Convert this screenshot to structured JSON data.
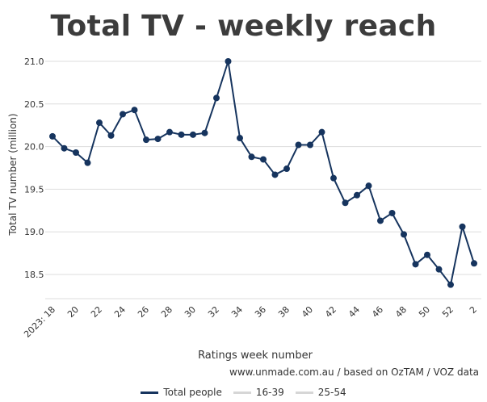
{
  "title": "Total TV - weekly reach",
  "source": "www.unmade.com.au / based on OzTAM / VOZ data",
  "colors": {
    "series_main": "#16345e",
    "series_inactive": "#d6d6d6",
    "grid": "#dddddd",
    "text": "#333333"
  },
  "chart_data": {
    "type": "line",
    "xlabel": "Ratings week number",
    "ylabel": "Total TV number (million)",
    "ylim": [
      18.2,
      21.0
    ],
    "yticks": [
      "21.0",
      "20.5",
      "20.0",
      "19.5",
      "19.0",
      "18.5"
    ],
    "ytick_values": [
      21.0,
      20.5,
      20.0,
      19.5,
      19.0,
      18.5
    ],
    "grid": true,
    "legend_position": "bottom",
    "x": [
      "2023: 18",
      "19",
      "20",
      "21",
      "22",
      "23",
      "24",
      "25",
      "26",
      "27",
      "28",
      "29",
      "30",
      "31",
      "32",
      "33",
      "34",
      "35",
      "36",
      "37",
      "38",
      "39",
      "40",
      "41",
      "42",
      "43",
      "44",
      "45",
      "46",
      "47",
      "48",
      "49",
      "50",
      "51",
      "52",
      "1",
      "2"
    ],
    "x_tick_labels": [
      "2023: 18",
      "20",
      "22",
      "24",
      "26",
      "28",
      "30",
      "32",
      "34",
      "36",
      "38",
      "40",
      "42",
      "44",
      "46",
      "48",
      "50",
      "52",
      "2"
    ],
    "series": [
      {
        "name": "Total people",
        "active": true,
        "values": [
          20.12,
          19.98,
          19.93,
          19.81,
          20.28,
          20.13,
          20.38,
          20.43,
          20.08,
          20.09,
          20.17,
          20.14,
          20.14,
          20.16,
          20.57,
          21.0,
          20.1,
          19.88,
          19.85,
          19.67,
          19.74,
          20.02,
          20.02,
          20.17,
          19.63,
          19.34,
          19.43,
          19.54,
          19.13,
          19.22,
          18.97,
          18.62,
          18.73,
          18.56,
          18.38,
          19.06,
          18.63
        ]
      },
      {
        "name": "16-39",
        "active": false
      },
      {
        "name": "25-54",
        "active": false
      }
    ]
  }
}
